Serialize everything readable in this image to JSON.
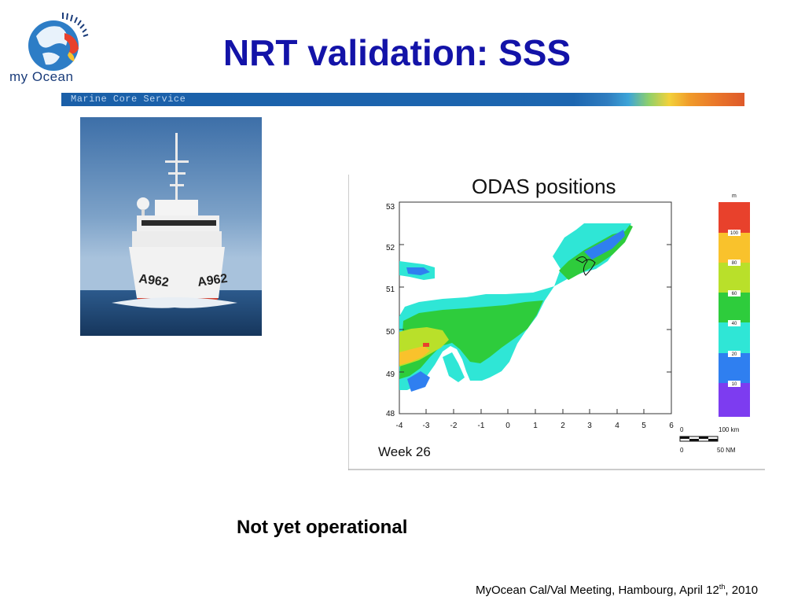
{
  "logo": {
    "text": "my Ocean"
  },
  "title": "NRT validation: SSS",
  "banner": {
    "text": "Marine Core Service"
  },
  "map": {
    "title": "ODAS positions",
    "week": "Week 26",
    "y_ticks": [
      "53",
      "52",
      "51",
      "50",
      "49",
      "48"
    ],
    "x_ticks": [
      "-4",
      "-3",
      "-2",
      "-1",
      "0",
      "1",
      "2",
      "3",
      "4",
      "5",
      "6"
    ],
    "legend": {
      "unit": "m",
      "colors": [
        "#e8412c",
        "#f9c22c",
        "#b9e02a",
        "#2ecc3c",
        "#2fe6d6",
        "#2f7ff0",
        "#7d3cf0"
      ],
      "labels": [
        "100",
        "80",
        "60",
        "40",
        "20",
        "10"
      ]
    },
    "scale_bar": {
      "km_start": "0",
      "km_end": "100 km",
      "nm_start": "0",
      "nm_end": "50 NM"
    }
  },
  "status": "Not yet operational",
  "footer": {
    "text": "MyOcean Cal/Val Meeting, Hambourg, April 12",
    "sup": "th",
    "suffix": ", 2010"
  }
}
